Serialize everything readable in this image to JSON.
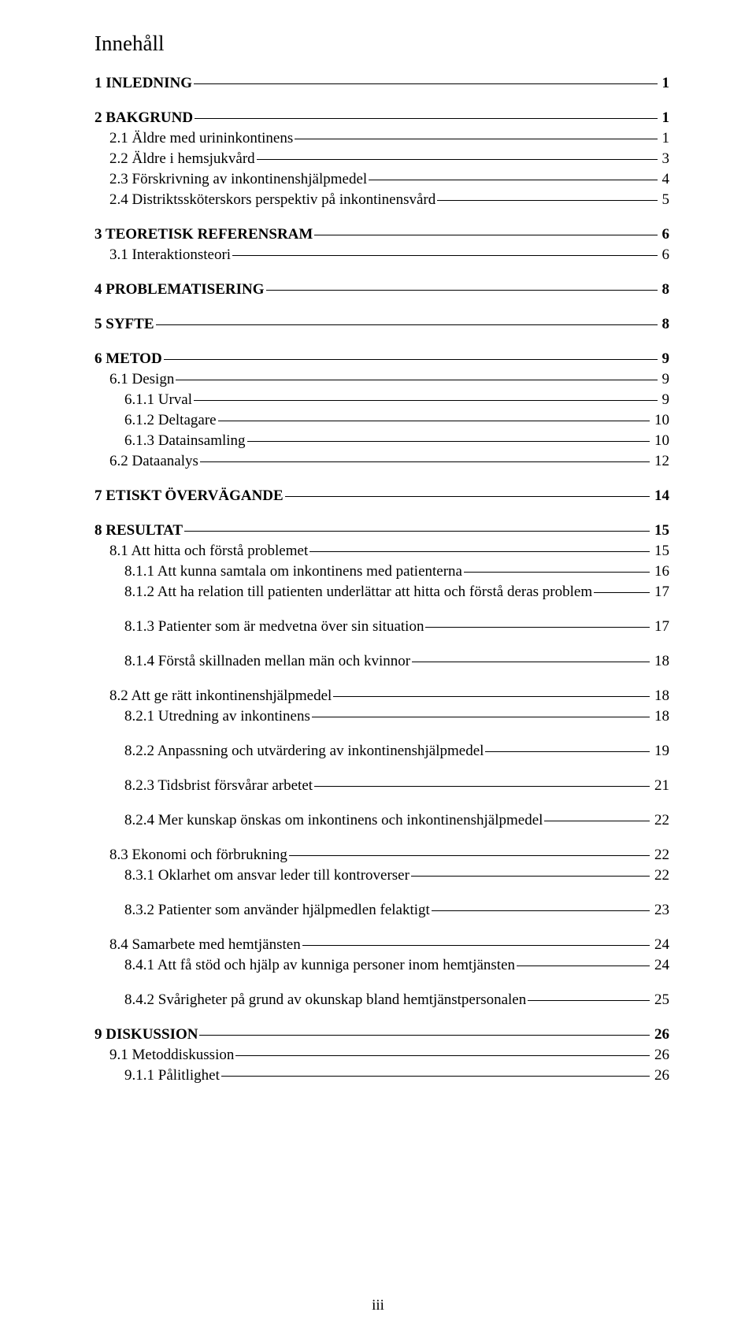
{
  "title": "Innehåll",
  "footer": "iii",
  "entries": [
    {
      "label": "1 INLEDNING",
      "page": "1",
      "bold": true,
      "indent": 0,
      "gap": "before"
    },
    {
      "label": "2 BAKGRUND",
      "page": "1",
      "bold": true,
      "indent": 0,
      "gap": "before"
    },
    {
      "label": "2.1 Äldre med urininkontinens",
      "page": "1",
      "bold": false,
      "indent": 1,
      "gap": "small"
    },
    {
      "label": "2.2 Äldre i hemsjukvård",
      "page": "3",
      "bold": false,
      "indent": 1,
      "gap": "small"
    },
    {
      "label": "2.3 Förskrivning av inkontinenshjälpmedel",
      "page": "4",
      "bold": false,
      "indent": 1,
      "gap": "small"
    },
    {
      "label": "2.4 Distriktssköterskors perspektiv på inkontinensvård",
      "page": "5",
      "bold": false,
      "indent": 1,
      "gap": "small"
    },
    {
      "label": "3 TEORETISK REFERENSRAM",
      "page": "6",
      "bold": true,
      "indent": 0,
      "gap": "before"
    },
    {
      "label": "3.1 Interaktionsteori",
      "page": "6",
      "bold": false,
      "indent": 1,
      "gap": "small"
    },
    {
      "label": "4 PROBLEMATISERING",
      "page": "8",
      "bold": true,
      "indent": 0,
      "gap": "before"
    },
    {
      "label": "5 SYFTE",
      "page": "8",
      "bold": true,
      "indent": 0,
      "gap": "before"
    },
    {
      "label": "6 METOD",
      "page": "9",
      "bold": true,
      "indent": 0,
      "gap": "before"
    },
    {
      "label": "6.1 Design",
      "page": "9",
      "bold": false,
      "indent": 1,
      "gap": "small"
    },
    {
      "label": "6.1.1 Urval",
      "page": "9",
      "bold": false,
      "indent": 2,
      "gap": "small"
    },
    {
      "label": "6.1.2 Deltagare",
      "page": "10",
      "bold": false,
      "indent": 2,
      "gap": "small"
    },
    {
      "label": "6.1.3 Datainsamling",
      "page": "10",
      "bold": false,
      "indent": 2,
      "gap": "small"
    },
    {
      "label": "6.2 Dataanalys",
      "page": "12",
      "bold": false,
      "indent": 1,
      "gap": "small"
    },
    {
      "label": "7 ETISKT ÖVERVÄGANDE",
      "page": "14",
      "bold": true,
      "indent": 0,
      "gap": "before"
    },
    {
      "label": "8 RESULTAT",
      "page": "15",
      "bold": true,
      "indent": 0,
      "gap": "before"
    },
    {
      "label": "8.1 Att hitta och förstå problemet",
      "page": "15",
      "bold": false,
      "indent": 1,
      "gap": "small"
    },
    {
      "label": "8.1.1 Att kunna samtala om inkontinens med patienterna",
      "page": "16",
      "bold": false,
      "indent": 2,
      "gap": "small"
    },
    {
      "label": "8.1.2 Att ha relation till patienten underlättar att hitta och förstå deras problem",
      "page": "17",
      "bold": false,
      "indent": 2,
      "gap": "small"
    },
    {
      "label": "8.1.3 Patienter som är medvetna över sin situation",
      "page": "17",
      "bold": false,
      "indent": 2,
      "gap": "before"
    },
    {
      "label": "8.1.4 Förstå skillnaden mellan män och kvinnor",
      "page": "18",
      "bold": false,
      "indent": 2,
      "gap": "before"
    },
    {
      "label": "8.2 Att ge rätt inkontinenshjälpmedel",
      "page": "18",
      "bold": false,
      "indent": 1,
      "gap": "before"
    },
    {
      "label": "8.2.1 Utredning av inkontinens",
      "page": "18",
      "bold": false,
      "indent": 2,
      "gap": "small"
    },
    {
      "label": "8.2.2 Anpassning och utvärdering av inkontinenshjälpmedel",
      "page": "19",
      "bold": false,
      "indent": 2,
      "gap": "before"
    },
    {
      "label": "8.2.3 Tidsbrist försvårar arbetet",
      "page": "21",
      "bold": false,
      "indent": 2,
      "gap": "before"
    },
    {
      "label": "8.2.4 Mer kunskap önskas om inkontinens och inkontinenshjälpmedel",
      "page": "22",
      "bold": false,
      "indent": 2,
      "gap": "before"
    },
    {
      "label": "8.3 Ekonomi och förbrukning",
      "page": "22",
      "bold": false,
      "indent": 1,
      "gap": "before"
    },
    {
      "label": "8.3.1 Oklarhet om ansvar leder till kontroverser",
      "page": "22",
      "bold": false,
      "indent": 2,
      "gap": "small"
    },
    {
      "label": "8.3.2 Patienter som använder hjälpmedlen felaktigt",
      "page": "23",
      "bold": false,
      "indent": 2,
      "gap": "before"
    },
    {
      "label": "8.4 Samarbete med hemtjänsten",
      "page": "24",
      "bold": false,
      "indent": 1,
      "gap": "before"
    },
    {
      "label": "8.4.1 Att få stöd och hjälp av kunniga personer inom hemtjänsten",
      "page": "24",
      "bold": false,
      "indent": 2,
      "gap": "small"
    },
    {
      "label": "8.4.2 Svårigheter på grund av okunskap bland hemtjänstpersonalen",
      "page": "25",
      "bold": false,
      "indent": 2,
      "gap": "before"
    },
    {
      "label": "9 DISKUSSION",
      "page": "26",
      "bold": true,
      "indent": 0,
      "gap": "before"
    },
    {
      "label": "9.1 Metoddiskussion",
      "page": "26",
      "bold": false,
      "indent": 1,
      "gap": "small"
    },
    {
      "label": "9.1.1 Pålitlighet",
      "page": "26",
      "bold": false,
      "indent": 2,
      "gap": "small"
    }
  ]
}
